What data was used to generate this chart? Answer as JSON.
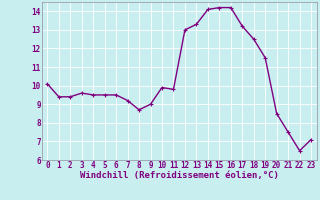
{
  "x": [
    0,
    1,
    2,
    3,
    4,
    5,
    6,
    7,
    8,
    9,
    10,
    11,
    12,
    13,
    14,
    15,
    16,
    17,
    18,
    19,
    20,
    21,
    22,
    23
  ],
  "y": [
    10.1,
    9.4,
    9.4,
    9.6,
    9.5,
    9.5,
    9.5,
    9.2,
    8.7,
    9.0,
    9.9,
    9.8,
    13.0,
    13.3,
    14.1,
    14.2,
    14.2,
    13.2,
    12.5,
    11.5,
    8.5,
    7.5,
    6.5,
    7.1
  ],
  "line_color": "#800080",
  "marker": "+",
  "marker_size": 3,
  "bg_color": "#c8eef0",
  "grid_color": "#ffffff",
  "xlabel": "Windchill (Refroidissement éolien,°C)",
  "ylim": [
    6,
    14.5
  ],
  "xlim": [
    -0.5,
    23.5
  ],
  "yticks": [
    6,
    7,
    8,
    9,
    10,
    11,
    12,
    13,
    14
  ],
  "xticks": [
    0,
    1,
    2,
    3,
    4,
    5,
    6,
    7,
    8,
    9,
    10,
    11,
    12,
    13,
    14,
    15,
    16,
    17,
    18,
    19,
    20,
    21,
    22,
    23
  ],
  "xlabel_fontsize": 6.5,
  "tick_fontsize": 5.5,
  "line_width": 1.0
}
